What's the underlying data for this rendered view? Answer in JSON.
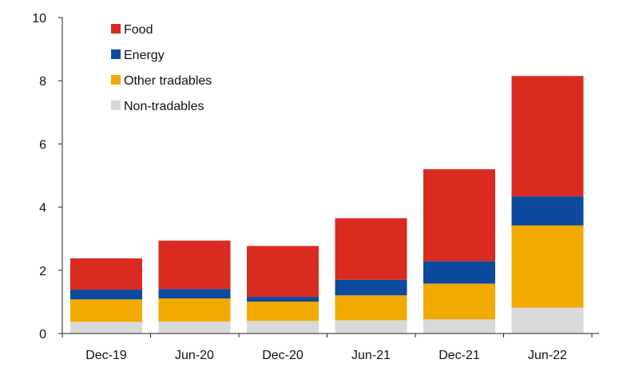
{
  "chart_data": {
    "type": "bar",
    "stacked": true,
    "categories": [
      "Dec-19",
      "Jun-20",
      "Dec-20",
      "Jun-21",
      "Dec-21",
      "Jun-22"
    ],
    "series": [
      {
        "name": "Non-tradables",
        "color": "#d9d9d9",
        "values": [
          0.37,
          0.38,
          0.4,
          0.42,
          0.45,
          0.82
        ]
      },
      {
        "name": "Other tradables",
        "color": "#f2a900",
        "values": [
          0.71,
          0.73,
          0.61,
          0.79,
          1.13,
          2.6
        ]
      },
      {
        "name": "Energy",
        "color": "#0b4a9e",
        "values": [
          0.31,
          0.3,
          0.15,
          0.49,
          0.71,
          0.92
        ]
      },
      {
        "name": "Food",
        "color": "#d92b20",
        "values": [
          0.99,
          1.53,
          1.61,
          1.95,
          2.91,
          3.81
        ]
      }
    ],
    "legend_order": [
      "Food",
      "Energy",
      "Other tradables",
      "Non-tradables"
    ],
    "legend_position": "top-left",
    "ylim": [
      0,
      10
    ],
    "yticks": [
      "0",
      "2",
      "4",
      "6",
      "8",
      "10"
    ],
    "grid": false,
    "title": "",
    "xlabel": "",
    "ylabel": ""
  }
}
